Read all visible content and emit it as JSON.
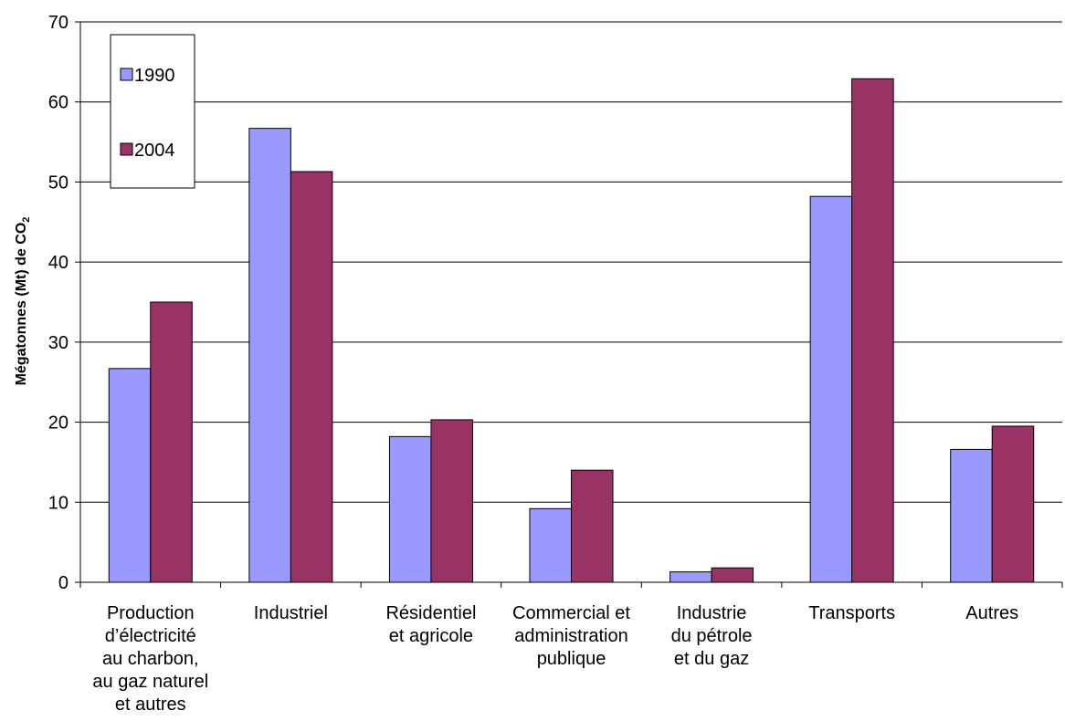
{
  "chart_data": {
    "type": "bar",
    "categories": [
      [
        "Production",
        "d’électricité",
        "au charbon,",
        "au gaz naturel",
        "et autres"
      ],
      [
        "Industriel"
      ],
      [
        "Résidentiel",
        "et agricole"
      ],
      [
        "Commercial et",
        "administration",
        "publique"
      ],
      [
        "Industrie",
        "du pétrole",
        "et du gaz"
      ],
      [
        "Transports"
      ],
      [
        "Autres"
      ]
    ],
    "series": [
      {
        "name": "1990",
        "color": "#9999ff",
        "values": [
          26.7,
          56.7,
          18.2,
          9.2,
          1.3,
          48.2,
          16.6
        ]
      },
      {
        "name": "2004",
        "color": "#993366",
        "values": [
          35.0,
          51.3,
          20.3,
          14.0,
          1.8,
          62.9,
          19.5
        ]
      }
    ],
    "title": "",
    "xlabel": "",
    "ylabel": {
      "main": "Mégatonnes (Mt) de CO",
      "subscript": "2"
    },
    "ylim": [
      0,
      70
    ],
    "yticks": [
      0,
      10,
      20,
      30,
      40,
      50,
      60,
      70
    ],
    "grid": true,
    "legend_position": "top-left"
  }
}
